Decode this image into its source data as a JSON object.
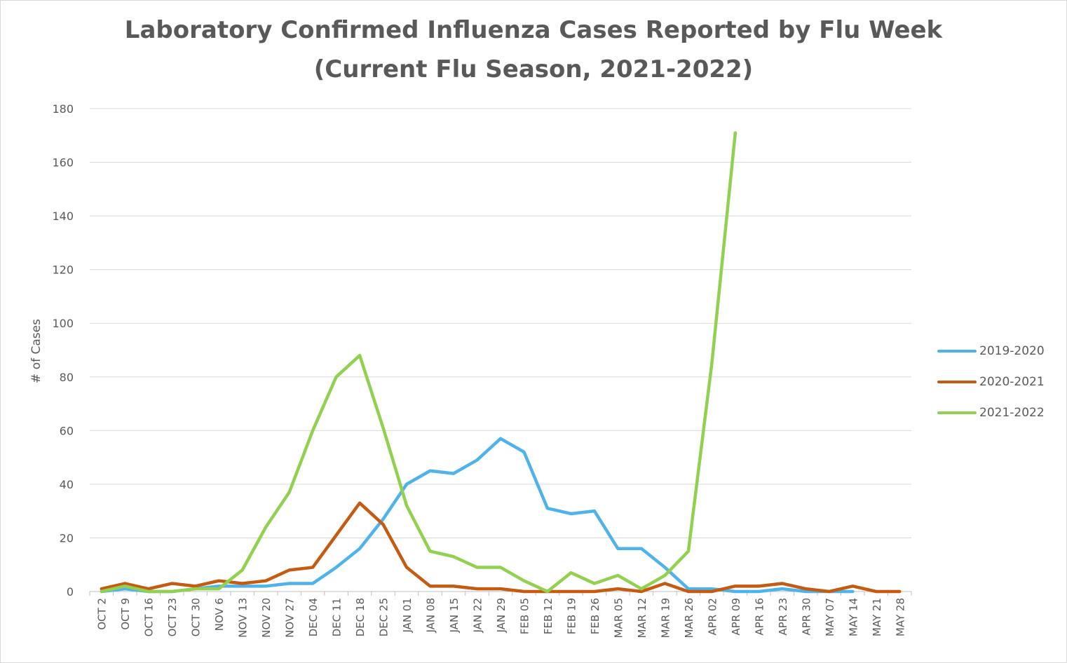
{
  "chart_data": {
    "type": "line",
    "title": "Laboratory Confirmed Influenza Cases Reported by Flu Week",
    "subtitle": "(Current Flu Season, 2021-2022)",
    "xlabel": "",
    "ylabel": "# of Cases",
    "ylim": [
      0,
      180
    ],
    "yticks": [
      0,
      20,
      40,
      60,
      80,
      100,
      120,
      140,
      160,
      180
    ],
    "grid": true,
    "legend_position": "right",
    "categories": [
      "OCT 2",
      "OCT 9",
      "OCT 16",
      "OCT 23",
      "OCT 30",
      "NOV 6",
      "NOV 13",
      "NOV 20",
      "NOV 27",
      "DEC 04",
      "DEC 11",
      "DEC 18",
      "DEC 25",
      "JAN 01",
      "JAN 08",
      "JAN 15",
      "JAN 22",
      "JAN 29",
      "FEB 05",
      "FEB 12",
      "FEB 19",
      "FEB 26",
      "MAR 05",
      "MAR 12",
      "MAR 19",
      "MAR 26",
      "APR 02",
      "APR 09",
      "APR 16",
      "APR 23",
      "APR 30",
      "MAY 07",
      "MAY 14",
      "MAY 21",
      "MAY 28"
    ],
    "series": [
      {
        "name": "2019-2020",
        "color": "#4eb3ea",
        "values": [
          0,
          1,
          0,
          0,
          1,
          2,
          2,
          2,
          3,
          3,
          9,
          16,
          27,
          40,
          45,
          44,
          49,
          57,
          52,
          31,
          29,
          30,
          16,
          16,
          9,
          1,
          1,
          0,
          0,
          1,
          0,
          0,
          0,
          null,
          null
        ]
      },
      {
        "name": "2020-2021",
        "color": "#c55a11",
        "values": [
          1,
          3,
          1,
          3,
          2,
          4,
          3,
          4,
          8,
          9,
          21,
          33,
          25,
          9,
          2,
          2,
          1,
          1,
          0,
          0,
          0,
          0,
          1,
          0,
          3,
          0,
          0,
          2,
          2,
          3,
          1,
          0,
          2,
          0,
          0
        ]
      },
      {
        "name": "2021-2022",
        "color": "#92d050",
        "values": [
          0,
          2,
          0,
          0,
          1,
          1,
          8,
          24,
          37,
          60,
          80,
          88,
          61,
          32,
          15,
          13,
          9,
          9,
          4,
          0,
          7,
          3,
          6,
          1,
          6,
          15,
          85,
          171,
          null,
          null,
          null,
          null,
          null,
          null,
          null
        ]
      }
    ]
  }
}
